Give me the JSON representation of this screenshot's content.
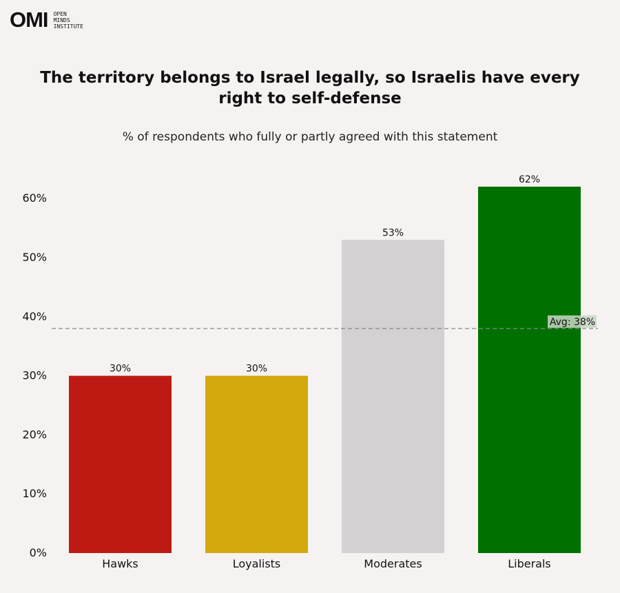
{
  "logo": {
    "mark": "OMI",
    "lines": [
      "OPEN",
      "MINDS",
      "INSTITUTE"
    ]
  },
  "chart_data": {
    "type": "bar",
    "title": "The territory belongs to Israel legally, so Israelis have every right to self-defense",
    "subtitle": "% of respondents who fully or partly agreed with this statement",
    "categories": [
      "Hawks",
      "Loyalists",
      "Moderates",
      "Liberals"
    ],
    "values": [
      30,
      30,
      53,
      62
    ],
    "value_labels": [
      "30%",
      "30%",
      "53%",
      "62%"
    ],
    "colors": [
      "#be1a14",
      "#d4a90c",
      "#d4d1d3",
      "#007000"
    ],
    "xlabel": "",
    "ylabel": "",
    "ylim": [
      0,
      60
    ],
    "yticks": [
      0,
      10,
      20,
      30,
      40,
      50,
      60
    ],
    "ytick_labels": [
      "0%",
      "10%",
      "20%",
      "30%",
      "40%",
      "50%",
      "60%"
    ],
    "grid": false,
    "reference_line": {
      "value": 38,
      "label": "Avg: 38%",
      "style": "dashed"
    }
  }
}
